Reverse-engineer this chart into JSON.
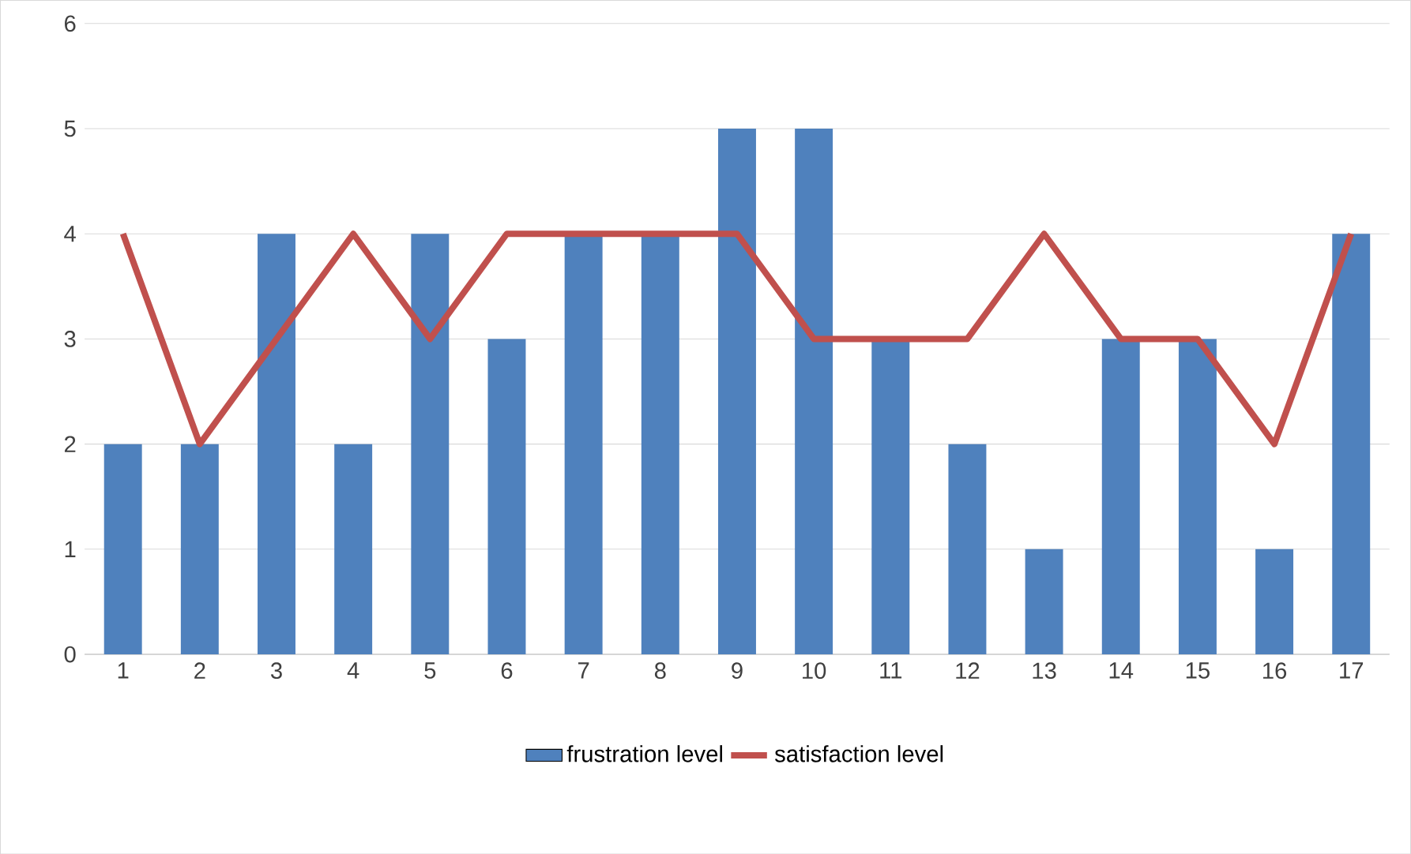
{
  "chart_data": {
    "type": "bar",
    "categories": [
      "1",
      "2",
      "3",
      "4",
      "5",
      "6",
      "7",
      "8",
      "9",
      "10",
      "11",
      "12",
      "13",
      "14",
      "15",
      "16",
      "17"
    ],
    "series": [
      {
        "name": "frustration level",
        "color": "#4f81bd",
        "values": [
          2,
          2,
          4,
          2,
          4,
          3,
          4,
          4,
          5,
          5,
          3,
          2,
          1,
          3,
          3,
          1,
          4
        ]
      },
      {
        "name": "satisfaction level",
        "type": "line",
        "color": "#c0504d",
        "values": [
          4,
          2,
          3,
          4,
          3,
          4,
          4,
          4,
          4,
          3,
          3,
          3,
          4,
          3,
          3,
          2,
          4
        ]
      }
    ],
    "ylim": [
      0,
      6
    ],
    "yticks": [
      0,
      1,
      2,
      3,
      4,
      5,
      6
    ],
    "grid": "y",
    "legend": "bottom"
  }
}
